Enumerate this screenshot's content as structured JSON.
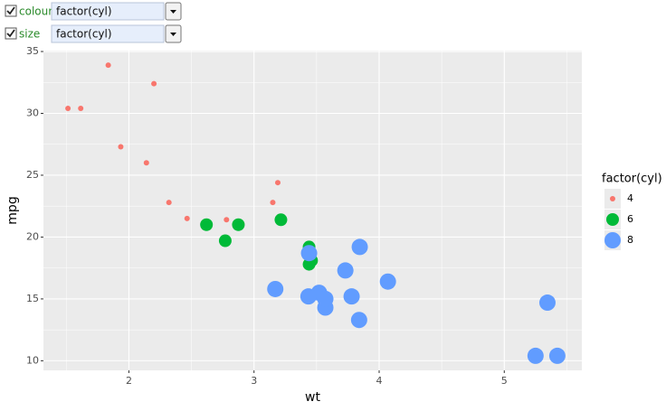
{
  "controls": [
    {
      "label": "colour",
      "value": "factor(cyl)",
      "checked": true
    },
    {
      "label": "size",
      "value": "factor(cyl)",
      "checked": true
    }
  ],
  "chart_data": {
    "type": "scatter",
    "x_label": "wt",
    "y_label": "mpg",
    "xlim": [
      1.317,
      5.62
    ],
    "ylim": [
      9.225,
      35.075
    ],
    "xticks": [
      2,
      3,
      4,
      5
    ],
    "yticks": [
      10,
      15,
      20,
      25,
      30,
      35
    ],
    "x_minor": [
      1.5,
      2.5,
      3.5,
      4.5,
      5.5
    ],
    "y_minor": [
      12.5,
      17.5,
      22.5,
      27.5,
      32.5
    ],
    "grid": true,
    "legend_title": "factor(cyl)",
    "legend": "right",
    "series": [
      {
        "name": "4",
        "color": "#F8766D",
        "x": [
          2.32,
          3.19,
          3.15,
          2.2,
          1.615,
          1.835,
          2.465,
          1.935,
          2.14,
          1.513,
          2.78
        ],
        "values": [
          22.8,
          24.4,
          22.8,
          32.4,
          30.4,
          33.9,
          21.5,
          27.3,
          26.0,
          30.4,
          21.4
        ]
      },
      {
        "name": "6",
        "color": "#00BA38",
        "x": [
          2.62,
          2.875,
          3.215,
          3.46,
          3.44,
          3.44,
          2.77
        ],
        "values": [
          21.0,
          21.0,
          21.4,
          18.1,
          19.2,
          17.8,
          19.7
        ]
      },
      {
        "name": "8",
        "color": "#619CFF",
        "x": [
          3.44,
          3.57,
          4.07,
          3.73,
          3.78,
          5.25,
          5.424,
          5.345,
          3.52,
          3.435,
          3.84,
          3.845,
          3.17,
          3.57
        ],
        "values": [
          18.7,
          14.3,
          16.4,
          17.3,
          15.2,
          10.4,
          10.4,
          14.7,
          15.5,
          15.2,
          13.3,
          19.2,
          15.8,
          15.0
        ]
      }
    ]
  }
}
